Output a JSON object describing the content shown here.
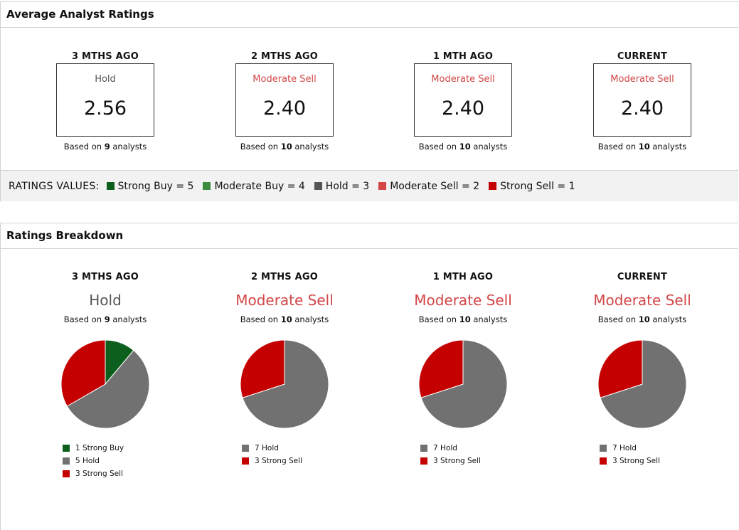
{
  "colors": {
    "strong_buy": "#0d5f1e",
    "moderate_buy": "#3a8a3f",
    "hold": "#717171",
    "hold_legend": "#555555",
    "moderate_sell": "#d24646",
    "strong_sell": "#c40000",
    "hold_text": "#555555",
    "sell_text": "#d24646"
  },
  "avg": {
    "title": "Average Analyst Ratings",
    "based_prefix": "Based on",
    "based_suffix": "analysts",
    "columns": [
      {
        "period": "3 MTHS AGO",
        "rating": "Hold",
        "rating_color": "#555555",
        "value": "2.56",
        "analysts": "9"
      },
      {
        "period": "2 MTHS AGO",
        "rating": "Moderate Sell",
        "rating_color": "#d24646",
        "value": "2.40",
        "analysts": "10"
      },
      {
        "period": "1 MTH AGO",
        "rating": "Moderate Sell",
        "rating_color": "#d24646",
        "value": "2.40",
        "analysts": "10"
      },
      {
        "period": "CURRENT",
        "rating": "Moderate Sell",
        "rating_color": "#d24646",
        "value": "2.40",
        "analysts": "10"
      }
    ],
    "legend_title": "RATINGS VALUES:",
    "legend": [
      {
        "label": "Strong Buy = 5",
        "color": "#0d5f1e"
      },
      {
        "label": "Moderate Buy = 4",
        "color": "#3a8a3f"
      },
      {
        "label": "Hold = 3",
        "color": "#555555"
      },
      {
        "label": "Moderate Sell = 2",
        "color": "#d24646"
      },
      {
        "label": "Strong Sell = 1",
        "color": "#c40000"
      }
    ]
  },
  "breakdown": {
    "title": "Ratings Breakdown"
  },
  "chart_data": [
    {
      "type": "pie",
      "title": "3 MTHS AGO",
      "rating": "Hold",
      "rating_color": "#555555",
      "analysts": "9",
      "slices": [
        {
          "label": "1 Strong Buy",
          "value": 1,
          "color": "#0d5f1e"
        },
        {
          "label": "5 Hold",
          "value": 5,
          "color": "#717171"
        },
        {
          "label": "3 Strong Sell",
          "value": 3,
          "color": "#c40000"
        }
      ]
    },
    {
      "type": "pie",
      "title": "2 MTHS AGO",
      "rating": "Moderate Sell",
      "rating_color": "#d24646",
      "analysts": "10",
      "slices": [
        {
          "label": "7 Hold",
          "value": 7,
          "color": "#717171"
        },
        {
          "label": "3 Strong Sell",
          "value": 3,
          "color": "#c40000"
        }
      ]
    },
    {
      "type": "pie",
      "title": "1 MTH AGO",
      "rating": "Moderate Sell",
      "rating_color": "#d24646",
      "analysts": "10",
      "slices": [
        {
          "label": "7 Hold",
          "value": 7,
          "color": "#717171"
        },
        {
          "label": "3 Strong Sell",
          "value": 3,
          "color": "#c40000"
        }
      ]
    },
    {
      "type": "pie",
      "title": "CURRENT",
      "rating": "Moderate Sell",
      "rating_color": "#d24646",
      "analysts": "10",
      "slices": [
        {
          "label": "7 Hold",
          "value": 7,
          "color": "#717171"
        },
        {
          "label": "3 Strong Sell",
          "value": 3,
          "color": "#c40000"
        }
      ]
    }
  ]
}
